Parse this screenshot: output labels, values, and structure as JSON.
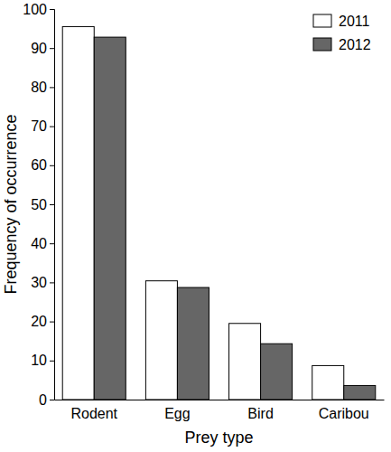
{
  "chart_data": {
    "type": "bar",
    "categories": [
      "Rodent",
      "Egg",
      "Bird",
      "Caribou"
    ],
    "series": [
      {
        "name": "2011",
        "color": "#ffffff",
        "values": [
          95.5,
          30.4,
          19.5,
          8.7
        ]
      },
      {
        "name": "2012",
        "color": "#666666",
        "values": [
          92.8,
          28.7,
          14.3,
          3.6
        ]
      }
    ],
    "x_label": "Prey type",
    "y_label": "Frequency of occurrence",
    "ylim": [
      0,
      100
    ],
    "yticks": [
      0,
      10,
      20,
      30,
      40,
      50,
      60,
      70,
      80,
      90,
      100
    ],
    "grid": false,
    "legend": "top-right"
  }
}
